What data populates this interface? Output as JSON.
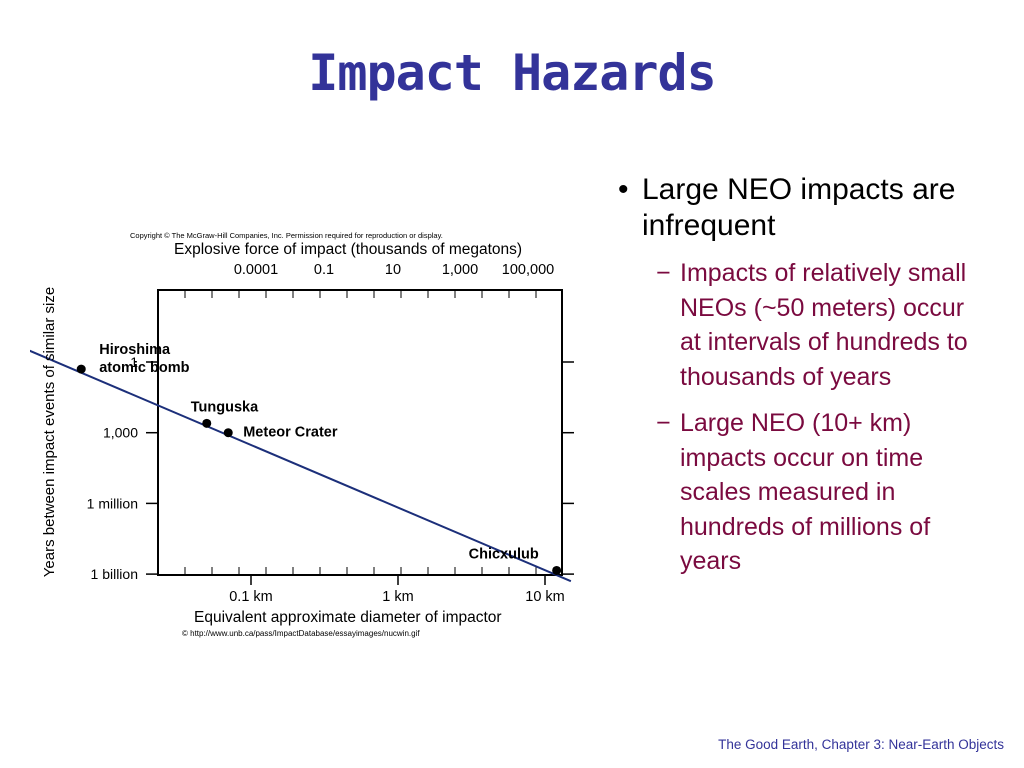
{
  "slide": {
    "title": "Impact Hazards",
    "footer": "The Good Earth, Chapter 3: Near-Earth Objects"
  },
  "bullets": {
    "main": {
      "marker": "•",
      "text": "Large NEO impacts are infrequent"
    },
    "sub": [
      {
        "marker": "−",
        "text": "Impacts of relatively small NEOs (~50 meters) occur at intervals of hundreds to thousands of years"
      },
      {
        "marker": "−",
        "text": "Large NEO (10+ km) impacts occur on time scales measured in hundreds of millions of years"
      }
    ]
  },
  "chart_data": {
    "type": "line",
    "copyright": "Copyright © The McGraw-Hill Companies, Inc. Permission required for reproduction or display.",
    "source": "© http://www.unb.ca/pass/ImpactDatabase/essayimages/nucwin.gif",
    "top_axis": {
      "label": "Explosive force of impact (thousands of megatons)",
      "ticks": [
        "0.0001",
        "0.1",
        "10",
        "1,000",
        "100,000"
      ]
    },
    "xlabel": "Equivalent approximate diameter of impactor",
    "ylabel": "Years between impact events of similar size",
    "x_scale": "log",
    "y_scale": "log",
    "x_ticks": [
      "0.1 km",
      "1 km",
      "10 km"
    ],
    "y_ticks": [
      "1",
      "1,000",
      "1 million",
      "1 billion"
    ],
    "series": [
      {
        "x_km": [
          0.003,
          15
        ],
        "y_years": [
          0.3,
          2000000000
        ]
      }
    ],
    "points": [
      {
        "label": "Hiroshima atomic bomb",
        "label_lines": [
          "Hiroshima",
          "atomic bomb"
        ],
        "x_km": 0.007,
        "y_years": 2
      },
      {
        "label": "Tunguska",
        "label_lines": [
          "Tunguska"
        ],
        "x_km": 0.05,
        "y_years": 400
      },
      {
        "label": "Meteor Crater",
        "label_lines": [
          "Meteor Crater"
        ],
        "x_km": 0.07,
        "y_years": 1000
      },
      {
        "label": "Chicxulub",
        "label_lines": [
          "Chicxulub"
        ],
        "x_km": 12,
        "y_years": 700000000
      }
    ]
  }
}
